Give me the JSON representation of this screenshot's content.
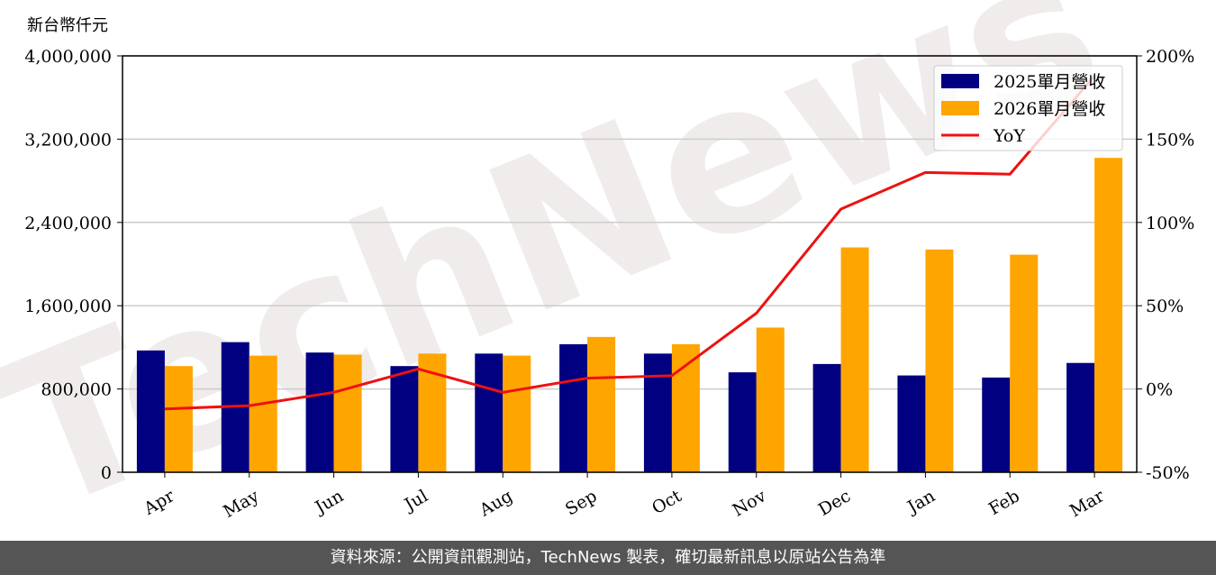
{
  "chart_data": {
    "type": "bar",
    "watermark": "TechNews",
    "ylabel": "新台幣仟元",
    "categories": [
      "Apr",
      "May",
      "Jun",
      "Jul",
      "Aug",
      "Sep",
      "Oct",
      "Nov",
      "Dec",
      "Jan",
      "Feb",
      "Mar"
    ],
    "series": [
      {
        "name": "2025單月營收",
        "type": "bar",
        "color": "#000080",
        "values": [
          1170000,
          1250000,
          1150000,
          1020000,
          1140000,
          1230000,
          1140000,
          960000,
          1040000,
          930000,
          910000,
          1050000
        ]
      },
      {
        "name": "2026單月營收",
        "type": "bar",
        "color": "#ffa500",
        "values": [
          1020000,
          1120000,
          1130000,
          1140000,
          1120000,
          1300000,
          1230000,
          1390000,
          2160000,
          2140000,
          2090000,
          3020000
        ]
      },
      {
        "name": "YoY",
        "type": "line",
        "axis": "y2",
        "color": "#ee1111",
        "values": [
          -12,
          -10,
          -2,
          12,
          -2,
          6.5,
          8,
          45.5,
          108,
          130,
          129,
          188
        ]
      }
    ],
    "ylim": [
      0,
      4000000
    ],
    "yticks": [
      0,
      {
        "value": 800000,
        "label": "800,000"
      },
      {
        "value": 1600000,
        "label": "1,600,000"
      },
      {
        "value": 2400000,
        "label": "2,400,000"
      },
      {
        "value": 3200000,
        "label": "3,200,000"
      },
      {
        "value": 4000000,
        "label": "4,000,000"
      }
    ],
    "y2lim": [
      -50,
      200
    ],
    "y2ticks": [
      {
        "value": -50,
        "label": "-50%"
      },
      {
        "value": 0,
        "label": "0%"
      },
      {
        "value": 50,
        "label": "50%"
      },
      {
        "value": 100,
        "label": "100%"
      },
      {
        "value": 150,
        "label": "150%"
      },
      {
        "value": 200,
        "label": "200%"
      }
    ],
    "grid": true,
    "legend": "upper right"
  },
  "footer": "資料來源：公開資訊觀測站，TechNews 製表，確切最新訊息以原站公告為準"
}
